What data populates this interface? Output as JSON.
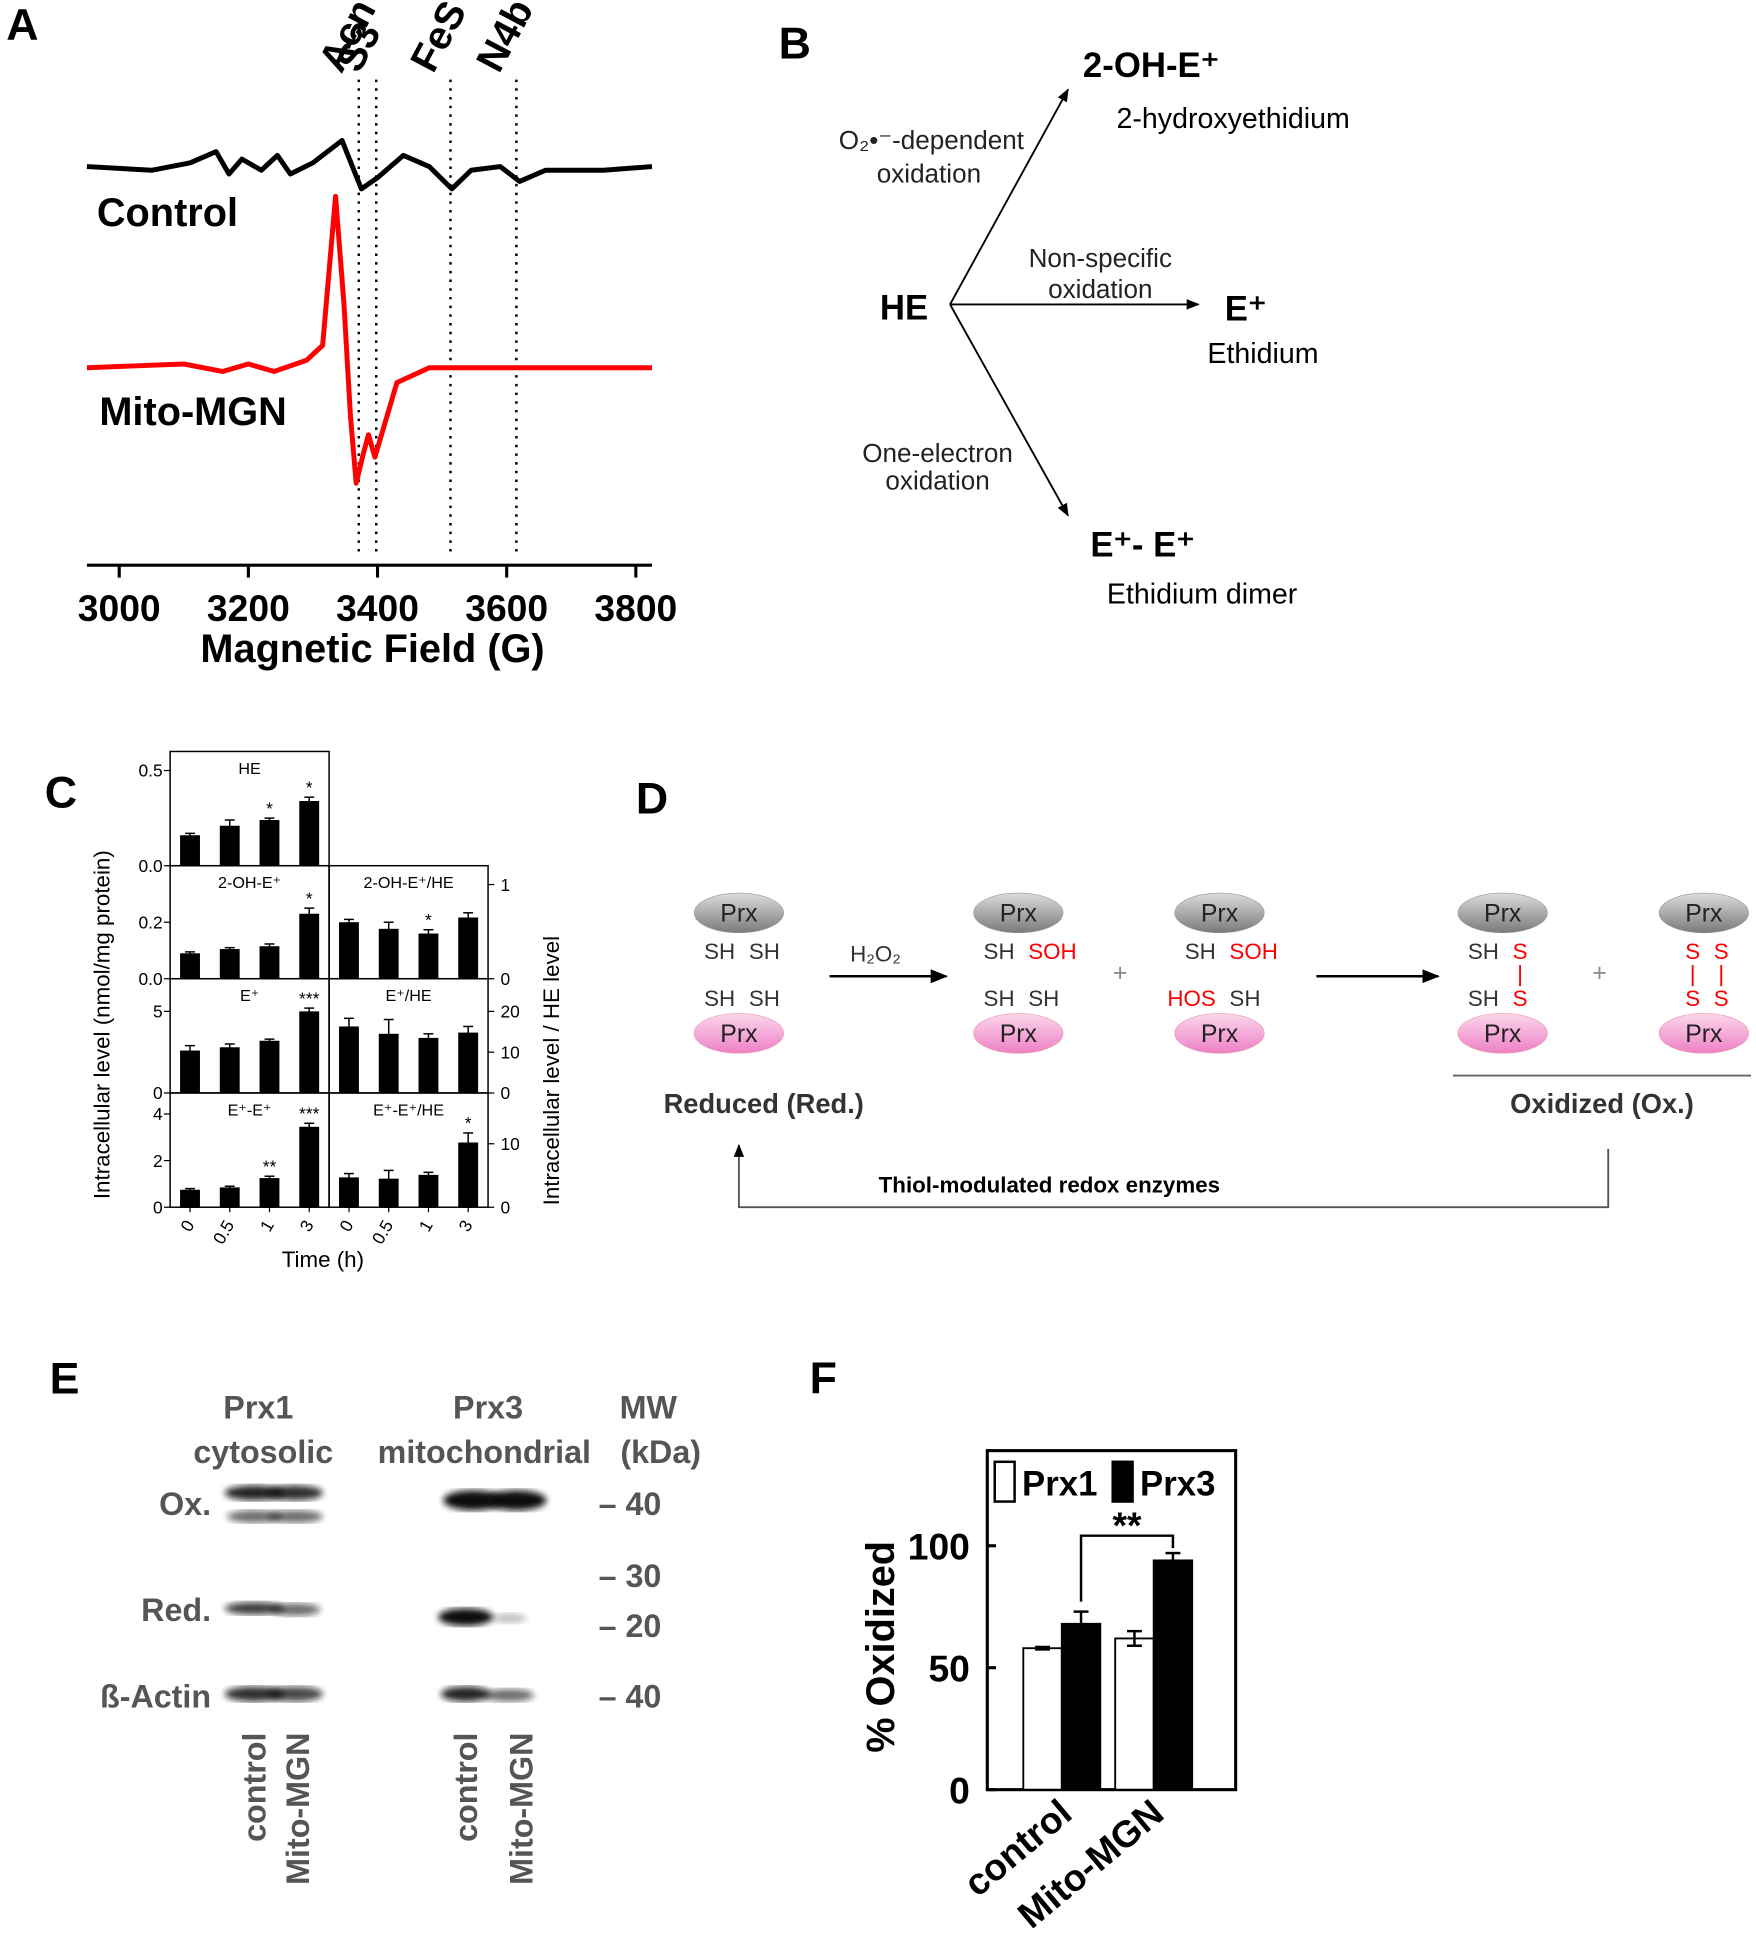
{
  "panel_labels": [
    "A",
    "B",
    "C",
    "D",
    "E",
    "F"
  ],
  "chart_data": [
    {
      "type": "line",
      "x_label": "Magnetic Field (G)",
      "xlim": [
        2950,
        3825
      ],
      "xticks": [
        3000,
        3200,
        3400,
        3600,
        3800
      ],
      "ylim": [
        0,
        100
      ],
      "series": [
        {
          "name": "Control",
          "color": "#000000",
          "x": [
            2950,
            3050,
            3110,
            3150,
            3170,
            3190,
            3220,
            3245,
            3265,
            3300,
            3345,
            3375,
            3400,
            3440,
            3480,
            3515,
            3545,
            3590,
            3620,
            3660,
            3750,
            3825
          ],
          "values": [
            92,
            91,
            93,
            96,
            90,
            94,
            91,
            95,
            90,
            93,
            99,
            86,
            89,
            95,
            92,
            86,
            91,
            92,
            88,
            91,
            91,
            92
          ]
        },
        {
          "name": "Mito-MGN",
          "color": "#ff0000",
          "x": [
            2950,
            3100,
            3160,
            3200,
            3240,
            3290,
            3315,
            3335,
            3348,
            3358,
            3367,
            3378,
            3386,
            3396,
            3430,
            3480,
            3550,
            3650,
            3825
          ],
          "values": [
            38,
            39,
            37,
            39,
            37,
            40,
            44,
            84,
            55,
            25,
            7,
            15,
            20,
            14,
            34,
            38,
            38,
            38,
            38
          ]
        }
      ],
      "markers": [
        {
          "label": "Acn",
          "x": 3371
        },
        {
          "label": "S3",
          "x": 3398
        },
        {
          "label": "FeS",
          "x": 3513
        },
        {
          "label": "N4b",
          "x": 3615
        }
      ]
    },
    {
      "type": "bar",
      "subtitle": "HE",
      "ylim": [
        0,
        0.6
      ],
      "yticks": [
        {
          "value": 0,
          "label": "0.0"
        },
        0.5
      ],
      "yaxis": "left",
      "color": "#000000",
      "values": [
        0.16,
        0.21,
        0.24,
        0.34
      ],
      "errors": [
        0.01,
        0.03,
        0.01,
        0.02
      ],
      "stars": [
        null,
        null,
        "*",
        "*"
      ]
    },
    {
      "type": "bar",
      "subtitle": "2-OH-E⁺",
      "ylim": [
        0,
        0.4
      ],
      "yticks": [
        {
          "value": 0,
          "label": "0.0"
        },
        0.2
      ],
      "yaxis": "left",
      "color": "#000000",
      "values": [
        0.09,
        0.105,
        0.115,
        0.23
      ],
      "errors": [
        0.005,
        0.005,
        0.008,
        0.02
      ],
      "stars": [
        null,
        null,
        null,
        "*"
      ]
    },
    {
      "type": "bar",
      "subtitle": "2-OH-E⁺/HE",
      "ylim": [
        0,
        1.2
      ],
      "yticks": [
        0,
        1
      ],
      "yaxis": "right",
      "color": "#000000",
      "values": [
        0.6,
        0.53,
        0.48,
        0.65
      ],
      "errors": [
        0.03,
        0.07,
        0.04,
        0.05
      ],
      "stars": [
        null,
        null,
        "*",
        null
      ]
    },
    {
      "type": "bar",
      "subtitle": "E⁺",
      "ylim": [
        0,
        7
      ],
      "yticks": [
        0,
        5
      ],
      "yaxis": "left",
      "color": "#000000",
      "values": [
        2.6,
        2.8,
        3.2,
        5.0
      ],
      "errors": [
        0.3,
        0.2,
        0.1,
        0.2
      ],
      "stars": [
        null,
        null,
        null,
        "***"
      ]
    },
    {
      "type": "bar",
      "subtitle": "E⁺/HE",
      "ylim": [
        0,
        28
      ],
      "yticks": [
        0,
        10,
        20
      ],
      "yaxis": "right",
      "color": "#000000",
      "values": [
        16.3,
        14.5,
        13.5,
        14.8
      ],
      "errors": [
        2,
        3.5,
        1,
        1.5
      ]
    },
    {
      "type": "bar",
      "subtitle": "E⁺-E⁺",
      "ylim": [
        0,
        4.9
      ],
      "yticks": [
        0,
        2,
        4
      ],
      "yaxis": "left",
      "color": "#000000",
      "categories": [
        "0",
        "0.5",
        "1",
        "3"
      ],
      "values": [
        0.75,
        0.85,
        1.25,
        3.45
      ],
      "errors": [
        0.05,
        0.05,
        0.08,
        0.15
      ],
      "stars": [
        null,
        null,
        "**",
        "***"
      ]
    },
    {
      "type": "bar",
      "subtitle": "E⁺-E⁺/HE",
      "ylim": [
        0,
        18
      ],
      "yticks": [
        0,
        10
      ],
      "yaxis": "right",
      "color": "#000000",
      "categories": [
        "0",
        "0.5",
        "1",
        "3"
      ],
      "values": [
        4.7,
        4.5,
        5.1,
        10.2
      ],
      "errors": [
        0.6,
        1.3,
        0.4,
        1.5
      ],
      "stars": [
        null,
        null,
        null,
        "*"
      ]
    },
    {
      "type": "grouped_bar",
      "y_label": "% Oxidized",
      "ylim": [
        0,
        139
      ],
      "yticks": [
        0,
        50,
        100
      ],
      "categories": [
        "control",
        "Mito-MGN"
      ],
      "series": [
        {
          "name": "Prx1",
          "color": "#ffffff",
          "values": [
            58,
            62
          ],
          "errors": [
            0.5,
            3
          ]
        },
        {
          "name": "Prx3",
          "color": "#000000",
          "values": [
            68,
            94
          ],
          "errors": [
            5,
            3
          ]
        }
      ],
      "significance_label": "**"
    }
  ],
  "panel_c": {
    "y_label_left": "Intracellular level (nmol/mg protein)",
    "y_label_right": "Intracellular level / HE level",
    "x_label": "Time (h)"
  },
  "diagram_b": {
    "source": "HE",
    "products": [
      {
        "name": "2-OH-E⁺",
        "description": "2-hydroxyethidium",
        "route": [
          "O₂•⁻-dependent",
          "oxidation"
        ]
      },
      {
        "name": "E⁺",
        "description": "Ethidium",
        "route": [
          "Non-specific",
          "oxidation"
        ]
      },
      {
        "name": "E⁺- E⁺",
        "description": "Ethidium dimer",
        "route": [
          "One-electron",
          "oxidation"
        ]
      }
    ]
  },
  "diagram_d": {
    "dimers": [
      {
        "top": "Prx",
        "bottom": "Prx",
        "thiols": [
          "SH",
          "SH",
          "SH",
          "SH"
        ]
      },
      {
        "top": "Prx",
        "bottom": "Prx",
        "thiols": [
          "SH",
          {
            "text": "SOH",
            "color": "#ff0000"
          },
          "SH",
          "SH"
        ]
      },
      {
        "top": "Prx",
        "bottom": "Prx",
        "thiols": [
          "SH",
          {
            "text": "SOH",
            "color": "#ff0000"
          },
          {
            "text": "HOS",
            "color": "#ff0000"
          },
          "SH"
        ]
      },
      {
        "top": "Prx",
        "bottom": "Prx",
        "thiols": [
          "SH",
          {
            "text": "S",
            "color": "#ff0000"
          },
          "SH",
          {
            "text": "S",
            "color": "#ff0000"
          }
        ]
      },
      {
        "top": "Prx",
        "bottom": "Prx",
        "thiols": [
          {
            "text": "S",
            "color": "#ff0000"
          },
          {
            "text": "S",
            "color": "#ff0000"
          },
          {
            "text": "S",
            "color": "#ff0000"
          },
          {
            "text": "S",
            "color": "#ff0000"
          }
        ]
      }
    ],
    "plus_signs": [
      "+",
      "+"
    ],
    "reagent": "H₂O₂",
    "reduced_label": "Reduced (Red.)",
    "oxidized_label": "Oxidized (Ox.)",
    "feedback_label": "Thiol-modulated redox enzymes"
  },
  "blot_e": {
    "columns": [
      {
        "title": "Prx1",
        "subtitle": "cytosolic"
      },
      {
        "title": "Prx3",
        "subtitle": "mitochondrial"
      }
    ],
    "mw_title": [
      "MW",
      "(kDa)"
    ],
    "row_labels": [
      "Ox.",
      "Red.",
      "ß-Actin"
    ],
    "mw_markers": [
      "– 40",
      "– 30",
      "– 20",
      "– 40"
    ],
    "lanes": [
      "control",
      "Mito-MGN",
      "control",
      "Mito-MGN"
    ]
  }
}
